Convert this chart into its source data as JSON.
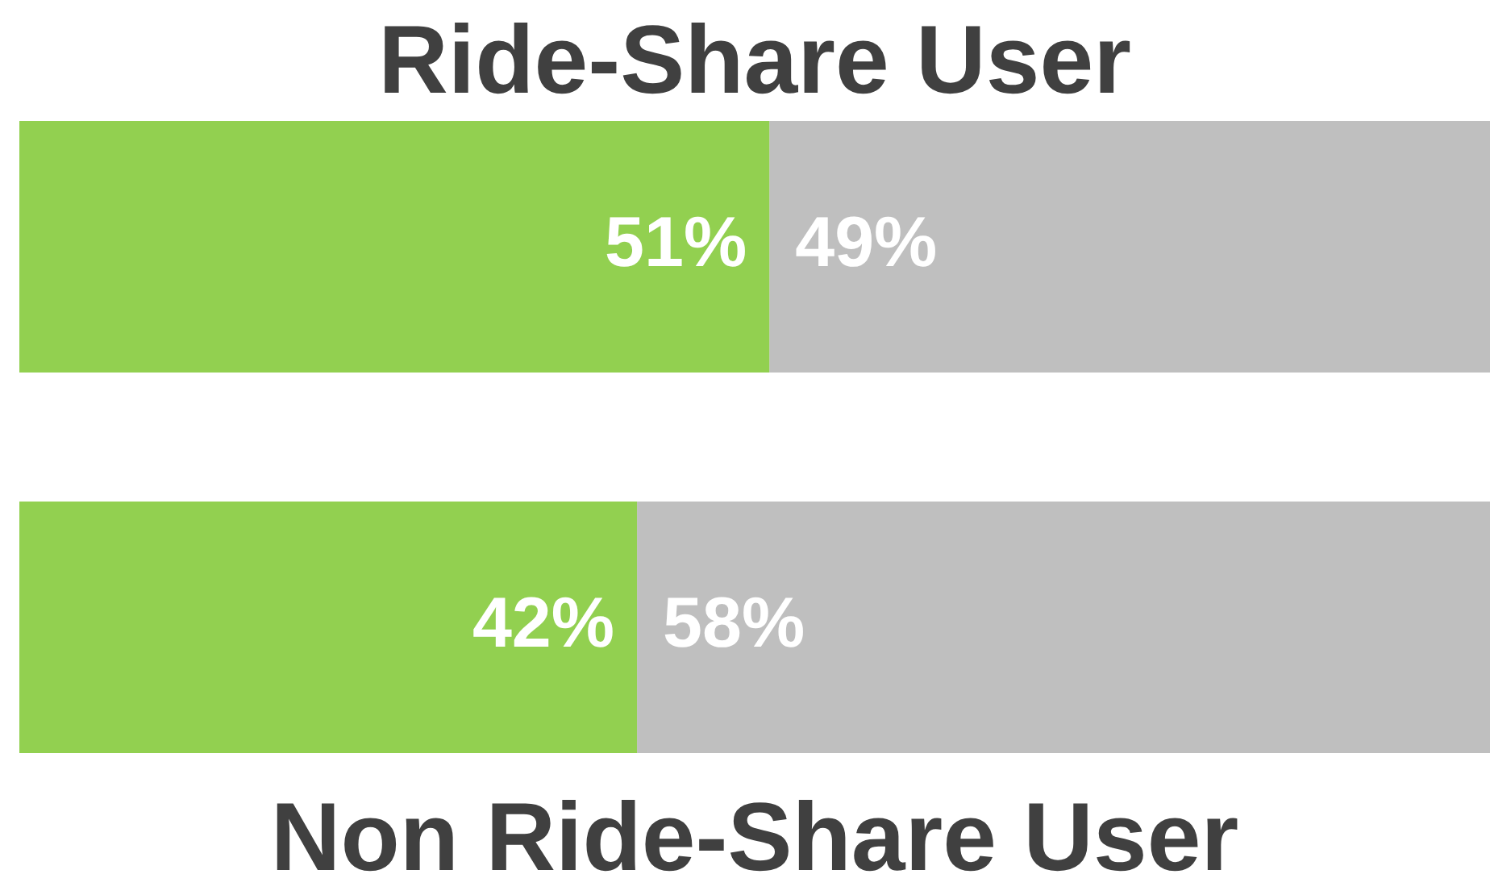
{
  "chart_data": {
    "type": "bar",
    "orientation": "horizontal",
    "stacked": true,
    "categories": [
      "Ride-Share User",
      "Non Ride-Share User"
    ],
    "series": [
      {
        "color": "#92d050",
        "values": [
          51,
          42
        ],
        "value_labels": [
          "51%",
          "42%"
        ]
      },
      {
        "color": "#bfbfbf",
        "values": [
          49,
          58
        ],
        "value_labels": [
          "49%",
          "58%"
        ]
      }
    ],
    "xlim": [
      0,
      100
    ],
    "tick_labels": false,
    "grid": false,
    "legend": false
  }
}
